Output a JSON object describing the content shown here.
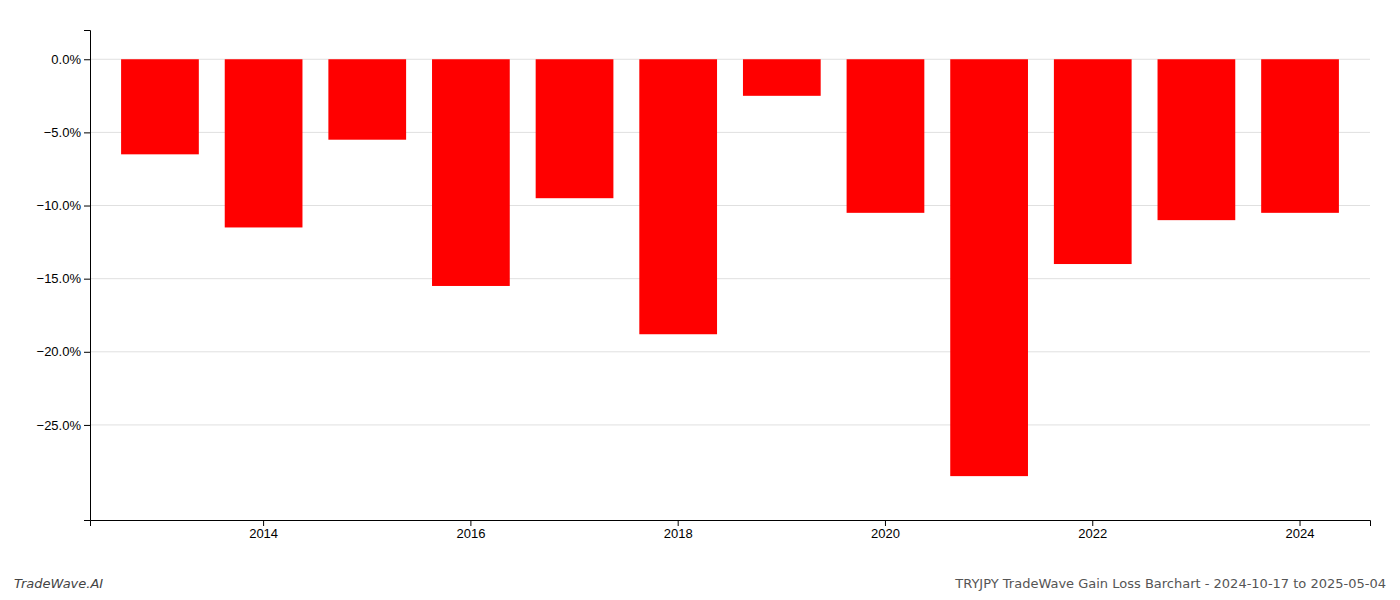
{
  "chart_data": {
    "type": "bar",
    "categories": [
      null,
      "2014",
      null,
      "2016",
      null,
      "2018",
      null,
      "2020",
      null,
      "2022",
      null,
      "2024"
    ],
    "values": [
      -6.5,
      -11.5,
      -5.5,
      -15.5,
      -9.5,
      -18.8,
      -2.5,
      -10.5,
      -28.5,
      -14.0,
      -11.0,
      -10.5
    ],
    "color": "#ff0000",
    "ylim": [
      -31.5,
      2.0
    ],
    "yticks": [
      {
        "value": 0.0,
        "label": "0.0%"
      },
      {
        "value": -5.0,
        "label": "−5.0%"
      },
      {
        "value": -10.0,
        "label": "−10.0%"
      },
      {
        "value": -15.0,
        "label": "−15.0%"
      },
      {
        "value": -20.0,
        "label": "−20.0%"
      },
      {
        "value": -25.0,
        "label": "−25.0%"
      }
    ],
    "grid": true,
    "annotations": [
      "TradeWave.AI",
      "TRYJPY TradeWave Gain Loss Barchart - 2024-10-17 to 2025-05-04"
    ]
  }
}
